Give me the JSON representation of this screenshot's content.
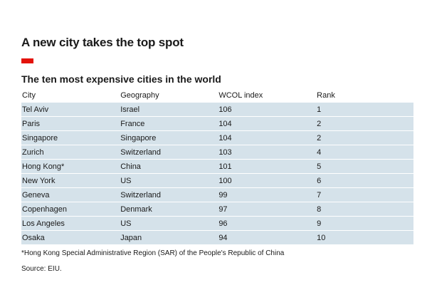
{
  "chart_data": {
    "type": "table",
    "title": "A new city takes the top spot",
    "subtitle": "The ten most expensive cities in the world",
    "columns": [
      "City",
      "Geography",
      "WCOL index",
      "Rank"
    ],
    "rows": [
      [
        "Tel Aviv",
        "Israel",
        "106",
        "1"
      ],
      [
        "Paris",
        "France",
        "104",
        "2"
      ],
      [
        "Singapore",
        "Singapore",
        "104",
        "2"
      ],
      [
        "Zurich",
        "Switzerland",
        "103",
        "4"
      ],
      [
        "Hong Kong*",
        "China",
        "101",
        "5"
      ],
      [
        "New York",
        "US",
        "100",
        "6"
      ],
      [
        "Geneva",
        "Switzerland",
        "99",
        "7"
      ],
      [
        "Copenhagen",
        "Denmark",
        "97",
        "8"
      ],
      [
        "Los Angeles",
        "US",
        "96",
        "9"
      ],
      [
        "Osaka",
        "Japan",
        "94",
        "10"
      ]
    ],
    "footnote": "*Hong Kong Special Administrative Region (SAR) of the People's Republic of China",
    "source": "Source: EIU.",
    "colors": {
      "accent": "#e3120b",
      "row_fill": "#d5e2ea"
    }
  }
}
